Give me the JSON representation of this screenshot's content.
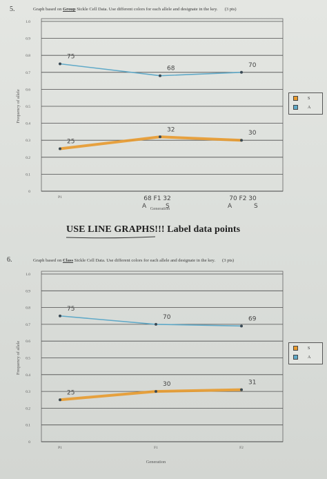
{
  "q5": {
    "number": "5.",
    "prompt_before": "Graph based on ",
    "prompt_group": "Group",
    "prompt_after": " Sickle Cell Data. Use different colors for each allele and designate in the key.",
    "points": "(3 pts)",
    "ylabel": "Frequency of allele",
    "xlabel": "Generation",
    "generation_note": "A",
    "generation_note2": "S",
    "key": {
      "s_label": "S",
      "a_label": "A",
      "s_color": "#e89a2e",
      "a_color": "#5fa9c8"
    },
    "annotations": {
      "f1": "68 F1 32",
      "f2": "70 F2 30",
      "f2_a": "A",
      "f2_s": "S"
    }
  },
  "banner": "USE LINE GRAPHS!!! Label data points",
  "q6": {
    "number": "6.",
    "prompt_before": "Graph based on ",
    "prompt_class": "Class",
    "prompt_after": " Sickle Cell Data. Use different colors for each allele and designate in the key.",
    "points": "(3 pts)",
    "ylabel": "Frequency of allele",
    "xlabel": "Generation",
    "key": {
      "s_label": "S",
      "a_label": "A",
      "s_color": "#e89a2e",
      "a_color": "#5fa9c8"
    }
  },
  "chart_data": [
    {
      "type": "line",
      "categories": [
        "P1",
        "F1",
        "F2"
      ],
      "category_labels": [
        "P1",
        "",
        ""
      ],
      "series": [
        {
          "name": "A",
          "values": [
            0.75,
            0.68,
            0.7
          ],
          "labels": [
            "75",
            "68",
            "70"
          ],
          "color": "#5fa9c8"
        },
        {
          "name": "S",
          "values": [
            0.25,
            0.32,
            0.3
          ],
          "labels": [
            "25",
            "32",
            "30"
          ],
          "color": "#e89a2e"
        }
      ],
      "ylim": [
        0,
        1.0
      ],
      "yticks": [
        "0",
        "0.1",
        "0.2",
        "0.3",
        "0.4",
        "0.5",
        "0.6",
        "0.7",
        "0.8",
        "0.9",
        "1.0"
      ],
      "grid": true,
      "legend": "right"
    },
    {
      "type": "line",
      "categories": [
        "P1",
        "F1",
        "F2"
      ],
      "category_labels": [
        "P1",
        "F1",
        "F2"
      ],
      "series": [
        {
          "name": "A",
          "values": [
            0.75,
            0.7,
            0.69
          ],
          "labels": [
            "75",
            "70",
            "69"
          ],
          "color": "#5fa9c8"
        },
        {
          "name": "S",
          "values": [
            0.25,
            0.3,
            0.31
          ],
          "labels": [
            "25",
            "30",
            "31"
          ],
          "color": "#e89a2e"
        }
      ],
      "ylim": [
        0,
        1.0
      ],
      "yticks": [
        "0",
        "0.1",
        "0.2",
        "0.3",
        "0.4",
        "0.5",
        "0.6",
        "0.7",
        "0.8",
        "0.9",
        "1.0"
      ],
      "grid": true,
      "legend": "right"
    }
  ]
}
